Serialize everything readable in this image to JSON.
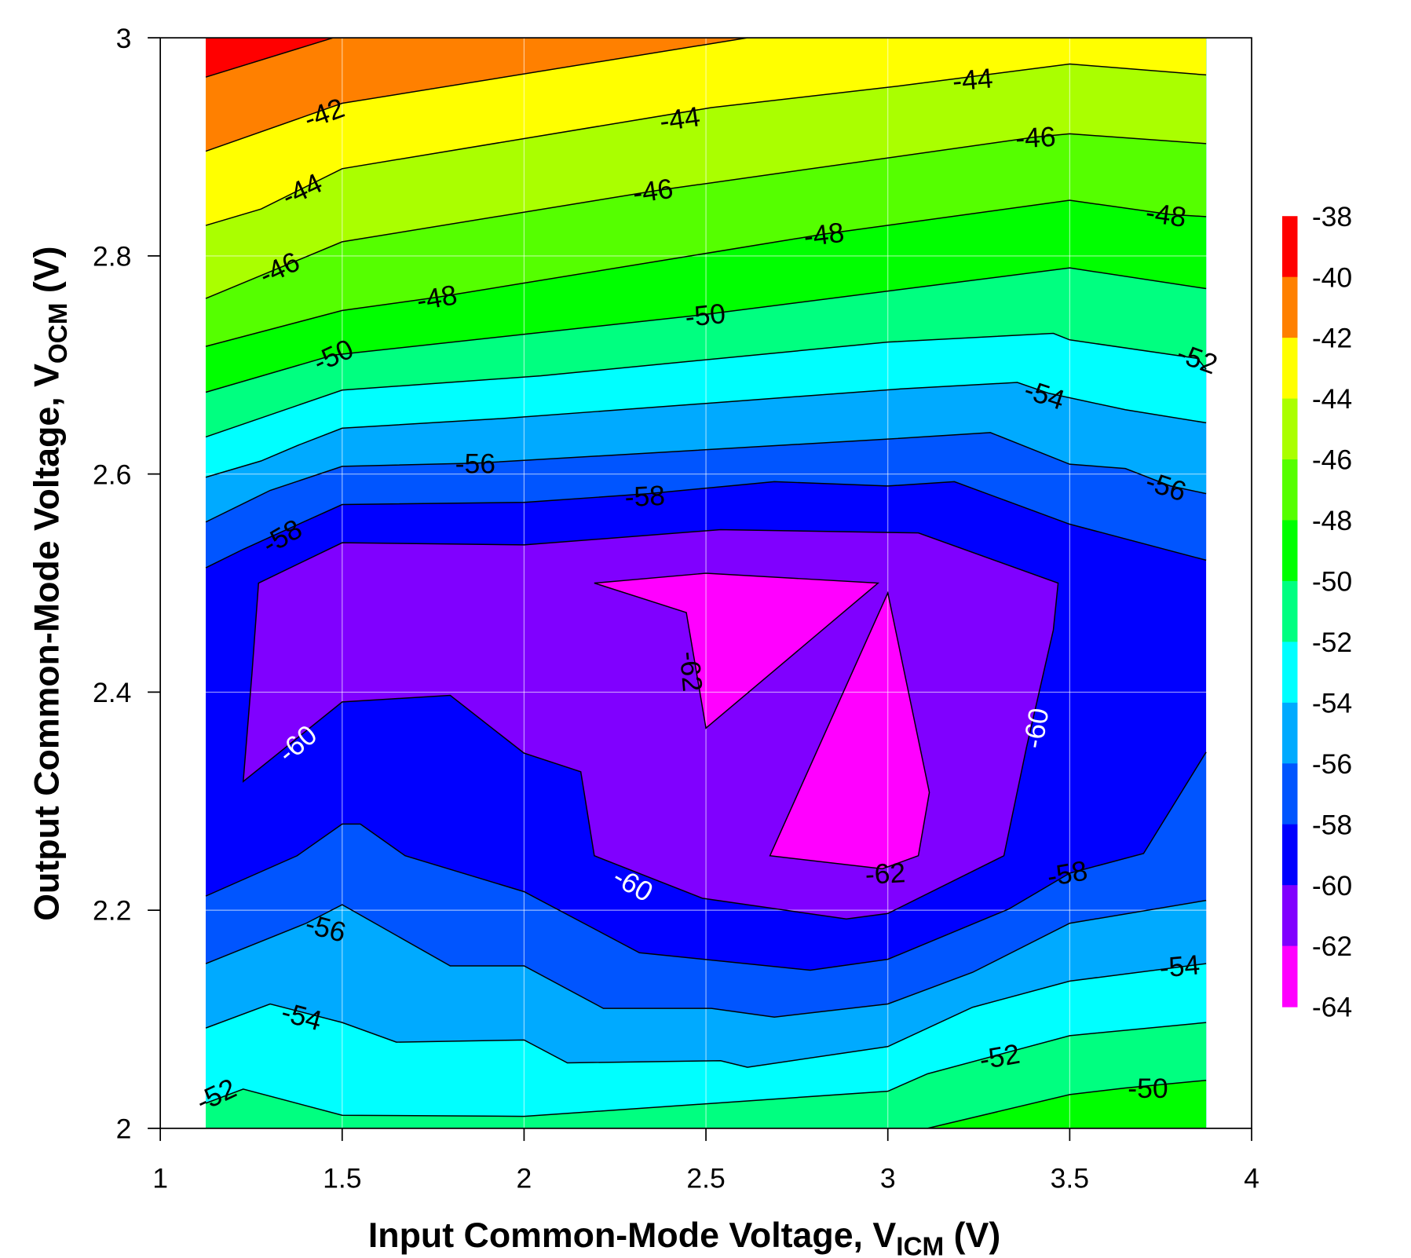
{
  "chart_data": {
    "type": "contour",
    "xlabel": "Input Common-Mode Voltage, V",
    "xlabel_sub": "ICM",
    "xlabel_unit": " (V)",
    "ylabel": "Output Common-Mode Voltage, V",
    "ylabel_sub": "OCM",
    "ylabel_unit": " (V)",
    "xlim": [
      1,
      4
    ],
    "ylim": [
      2,
      3
    ],
    "data_xrange": [
      1.125,
      3.875
    ],
    "x_ticks": [
      "1",
      "1.5",
      "2",
      "2.5",
      "3",
      "3.5",
      "4"
    ],
    "x_tick_values": [
      1,
      1.5,
      2,
      2.5,
      3,
      3.5,
      4
    ],
    "y_ticks": [
      "2",
      "2.2",
      "2.4",
      "2.6",
      "2.8",
      "3"
    ],
    "y_tick_values": [
      2,
      2.2,
      2.4,
      2.6,
      2.8,
      3
    ],
    "grid": true,
    "colorbar": {
      "position": "right",
      "labels": [
        "-38",
        "-40",
        "-42",
        "-44",
        "-46",
        "-48",
        "-50",
        "-52",
        "-54",
        "-56",
        "-58",
        "-60",
        "-62",
        "-64"
      ],
      "colors": [
        "#ff0000",
        "#ff8000",
        "#ffff00",
        "#aaff00",
        "#55ff00",
        "#00ff00",
        "#00ff80",
        "#00ffff",
        "#00aaff",
        "#0055ff",
        "#0000ff",
        "#8000ff",
        "#ff00ff"
      ]
    },
    "base_fill": "#0000ff",
    "top_contours": [
      {
        "level": -58,
        "fill": "#0055ff",
        "points": [
          [
            1.125,
            2.514
          ],
          [
            1.228,
            2.531
          ],
          [
            1.327,
            2.546
          ],
          [
            1.5,
            2.572
          ],
          [
            2.0,
            2.574
          ],
          [
            2.342,
            2.582
          ],
          [
            2.688,
            2.593
          ],
          [
            3.0,
            2.589
          ],
          [
            3.183,
            2.593
          ],
          [
            3.5,
            2.554
          ],
          [
            3.875,
            2.521
          ]
        ]
      },
      {
        "level": -56,
        "fill": "#00aaff",
        "points": [
          [
            1.125,
            2.556
          ],
          [
            1.302,
            2.585
          ],
          [
            1.5,
            2.607
          ],
          [
            1.871,
            2.61
          ],
          [
            3.0,
            2.632
          ],
          [
            3.282,
            2.638
          ],
          [
            3.5,
            2.609
          ],
          [
            3.653,
            2.605
          ],
          [
            3.777,
            2.589
          ],
          [
            3.875,
            2.582
          ]
        ]
      },
      {
        "level": -54,
        "fill": "#00ffff",
        "points": [
          [
            1.125,
            2.597
          ],
          [
            1.277,
            2.612
          ],
          [
            1.376,
            2.626
          ],
          [
            1.5,
            2.642
          ],
          [
            1.946,
            2.651
          ],
          [
            3.035,
            2.678
          ],
          [
            3.356,
            2.684
          ],
          [
            3.443,
            2.674
          ],
          [
            3.653,
            2.659
          ],
          [
            3.875,
            2.647
          ]
        ]
      },
      {
        "level": -52,
        "fill": "#00ff80",
        "points": [
          [
            1.125,
            2.634
          ],
          [
            1.5,
            2.677
          ],
          [
            2.045,
            2.69
          ],
          [
            3.0,
            2.721
          ],
          [
            3.455,
            2.729
          ],
          [
            3.5,
            2.723
          ],
          [
            3.851,
            2.706
          ],
          [
            3.875,
            2.696
          ]
        ]
      },
      {
        "level": -50,
        "fill": "#00ff00",
        "points": [
          [
            1.125,
            2.675
          ],
          [
            1.475,
            2.709
          ],
          [
            2.49,
            2.746
          ],
          [
            3.5,
            2.789
          ],
          [
            3.875,
            2.77
          ]
        ]
      },
      {
        "level": -48,
        "fill": "#55ff00",
        "points": [
          [
            1.125,
            2.717
          ],
          [
            1.5,
            2.75
          ],
          [
            1.76,
            2.762
          ],
          [
            2.824,
            2.82
          ],
          [
            3.5,
            2.851
          ],
          [
            3.777,
            2.838
          ],
          [
            3.875,
            2.836
          ]
        ]
      },
      {
        "level": -46,
        "fill": "#aaff00",
        "points": [
          [
            1.125,
            2.761
          ],
          [
            1.327,
            2.789
          ],
          [
            1.5,
            2.813
          ],
          [
            2.366,
            2.86
          ],
          [
            3.406,
            2.909
          ],
          [
            3.5,
            2.912
          ],
          [
            3.875,
            2.903
          ]
        ]
      },
      {
        "level": -44,
        "fill": "#ffff00",
        "points": [
          [
            1.125,
            2.828
          ],
          [
            1.277,
            2.843
          ],
          [
            1.5,
            2.88
          ],
          [
            2.515,
            2.936
          ],
          [
            3.035,
            2.956
          ],
          [
            3.5,
            2.976
          ],
          [
            3.875,
            2.966
          ]
        ]
      },
      {
        "level": -42,
        "fill": "#ff8000",
        "points": [
          [
            1.125,
            2.896
          ],
          [
            1.5,
            2.94
          ],
          [
            2.614,
            3.0
          ]
        ]
      },
      {
        "level": -40,
        "fill": "#ff0000",
        "points": [
          [
            1.125,
            2.964
          ],
          [
            1.475,
            3.0
          ]
        ]
      }
    ],
    "bottom_contours": [
      {
        "level": -58,
        "fill": "#0055ff",
        "points": [
          [
            1.125,
            2.213
          ],
          [
            1.376,
            2.25
          ],
          [
            1.5,
            2.279
          ],
          [
            1.55,
            2.279
          ],
          [
            1.673,
            2.25
          ],
          [
            2.0,
            2.217
          ],
          [
            2.317,
            2.161
          ],
          [
            2.787,
            2.145
          ],
          [
            3.0,
            2.155
          ],
          [
            3.332,
            2.201
          ],
          [
            3.5,
            2.234
          ],
          [
            3.703,
            2.252
          ],
          [
            3.875,
            2.345
          ]
        ]
      },
      {
        "level": -56,
        "fill": "#00aaff",
        "points": [
          [
            1.125,
            2.151
          ],
          [
            1.401,
            2.188
          ],
          [
            1.5,
            2.205
          ],
          [
            1.797,
            2.149
          ],
          [
            2.0,
            2.149
          ],
          [
            2.218,
            2.11
          ],
          [
            2.515,
            2.11
          ],
          [
            2.688,
            2.102
          ],
          [
            3.0,
            2.114
          ],
          [
            3.233,
            2.143
          ],
          [
            3.5,
            2.188
          ],
          [
            3.875,
            2.209
          ]
        ]
      },
      {
        "level": -54,
        "fill": "#00ffff",
        "points": [
          [
            1.125,
            2.092
          ],
          [
            1.302,
            2.114
          ],
          [
            1.5,
            2.097
          ],
          [
            1.649,
            2.079
          ],
          [
            2.0,
            2.081
          ],
          [
            2.119,
            2.06
          ],
          [
            2.54,
            2.062
          ],
          [
            2.614,
            2.056
          ],
          [
            3.0,
            2.075
          ],
          [
            3.233,
            2.111
          ],
          [
            3.5,
            2.135
          ],
          [
            3.875,
            2.151
          ]
        ]
      },
      {
        "level": -52,
        "fill": "#00ff80",
        "points": [
          [
            1.125,
            2.023
          ],
          [
            1.228,
            2.036
          ],
          [
            1.5,
            2.012
          ],
          [
            2.0,
            2.011
          ],
          [
            3.0,
            2.034
          ],
          [
            3.109,
            2.05
          ],
          [
            3.5,
            2.085
          ],
          [
            3.875,
            2.097
          ]
        ]
      },
      {
        "level": -50,
        "fill": "#00ff00",
        "points": [
          [
            3.109,
            2.0
          ],
          [
            3.5,
            2.031
          ],
          [
            3.653,
            2.037
          ],
          [
            3.875,
            2.044
          ]
        ]
      }
    ],
    "closed_contours": [
      {
        "level": -60,
        "fill": "#8000ff",
        "points": [
          [
            1.27,
            2.5
          ],
          [
            1.5,
            2.537
          ],
          [
            2.0,
            2.535
          ],
          [
            2.54,
            2.549
          ],
          [
            3.084,
            2.546
          ],
          [
            3.468,
            2.5
          ],
          [
            3.455,
            2.457
          ],
          [
            3.381,
            2.349
          ],
          [
            3.319,
            2.25
          ],
          [
            3.0,
            2.197
          ],
          [
            2.886,
            2.192
          ],
          [
            2.49,
            2.211
          ],
          [
            2.193,
            2.25
          ],
          [
            2.156,
            2.327
          ],
          [
            2.0,
            2.344
          ],
          [
            1.797,
            2.397
          ],
          [
            1.5,
            2.391
          ],
          [
            1.228,
            2.318
          ],
          [
            1.252,
            2.417
          ]
        ]
      },
      {
        "level": -62,
        "fill": "#ff00ff",
        "points": [
          [
            2.193,
            2.5
          ],
          [
            2.5,
            2.509
          ],
          [
            2.973,
            2.5
          ],
          [
            2.5,
            2.367
          ],
          [
            2.446,
            2.473
          ]
        ]
      },
      {
        "level": -62,
        "fill": "#ff00ff",
        "points": [
          [
            3.0,
            2.491
          ],
          [
            3.114,
            2.308
          ],
          [
            3.084,
            2.25
          ],
          [
            2.985,
            2.238
          ],
          [
            2.676,
            2.25
          ]
        ]
      }
    ],
    "contour_labels": [
      {
        "text": "-42",
        "x": 1.45,
        "y": 2.931,
        "color": "#000000"
      },
      {
        "text": "-44",
        "x": 1.389,
        "y": 2.861,
        "color": "#000000"
      },
      {
        "text": "-44",
        "x": 2.428,
        "y": 2.926,
        "color": "#000000"
      },
      {
        "text": "-44",
        "x": 3.233,
        "y": 2.962,
        "color": "#000000"
      },
      {
        "text": "-46",
        "x": 1.327,
        "y": 2.789,
        "color": "#000000"
      },
      {
        "text": "-46",
        "x": 2.354,
        "y": 2.86,
        "color": "#000000"
      },
      {
        "text": "-46",
        "x": 3.406,
        "y": 2.909,
        "color": "#000000"
      },
      {
        "text": "-48",
        "x": 1.76,
        "y": 2.762,
        "color": "#000000"
      },
      {
        "text": "-48",
        "x": 2.824,
        "y": 2.82,
        "color": "#000000"
      },
      {
        "text": "-48",
        "x": 3.765,
        "y": 2.838,
        "color": "#000000"
      },
      {
        "text": "-50",
        "x": 1.475,
        "y": 2.709,
        "color": "#000000"
      },
      {
        "text": "-50",
        "x": 2.498,
        "y": 2.746,
        "color": "#000000"
      },
      {
        "text": "-50",
        "x": 3.715,
        "y": 2.037,
        "color": "#000000"
      },
      {
        "text": "-52",
        "x": 3.851,
        "y": 2.706,
        "color": "#000000"
      },
      {
        "text": "-52",
        "x": 1.153,
        "y": 2.031,
        "color": "#000000"
      },
      {
        "text": "-52",
        "x": 3.307,
        "y": 2.066,
        "color": "#000000"
      },
      {
        "text": "-54",
        "x": 3.431,
        "y": 2.673,
        "color": "#000000"
      },
      {
        "text": "-54",
        "x": 1.389,
        "y": 2.103,
        "color": "#000000"
      },
      {
        "text": "-54",
        "x": 3.802,
        "y": 2.149,
        "color": "#000000"
      },
      {
        "text": "-56",
        "x": 1.866,
        "y": 2.61,
        "color": "#000000"
      },
      {
        "text": "-56",
        "x": 3.765,
        "y": 2.589,
        "color": "#000000"
      },
      {
        "text": "-56",
        "x": 1.455,
        "y": 2.184,
        "color": "#000000"
      },
      {
        "text": "-58",
        "x": 1.334,
        "y": 2.543,
        "color": "#000000"
      },
      {
        "text": "-58",
        "x": 2.332,
        "y": 2.58,
        "color": "#000000"
      },
      {
        "text": "-58",
        "x": 3.493,
        "y": 2.234,
        "color": "#000000"
      },
      {
        "text": "-60",
        "x": 1.376,
        "y": 2.353,
        "color": "#ffffff"
      },
      {
        "text": "-60",
        "x": 2.3,
        "y": 2.224,
        "color": "#ffffff"
      },
      {
        "text": "-60",
        "x": 3.406,
        "y": 2.367,
        "color": "#ffffff"
      },
      {
        "text": "-62",
        "x": 2.46,
        "y": 2.419,
        "color": "#000000"
      },
      {
        "text": "-62",
        "x": 2.993,
        "y": 2.234,
        "color": "#000000"
      }
    ]
  }
}
